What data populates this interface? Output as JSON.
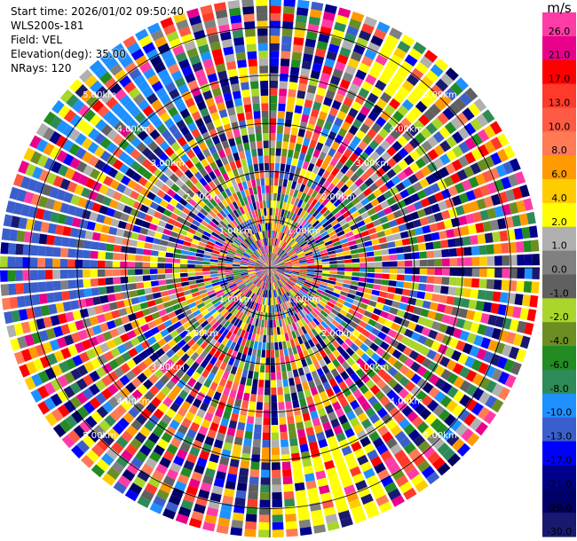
{
  "header": {
    "start_time": "Start time: 2026/01/02 09:50:40",
    "instrument": "WLS200s-181",
    "field": "Field: VEL",
    "elevation": "Elevation(deg): 35.00",
    "nrays": "NRays: 120"
  },
  "colorbar": {
    "unit": "m/s",
    "bins": [
      {
        "label": "26.0",
        "color": "#ff3ba6"
      },
      {
        "label": "21.0",
        "color": "#e8008b"
      },
      {
        "label": "17.0",
        "color": "#ff0000"
      },
      {
        "label": "13.0",
        "color": "#ff3a2a"
      },
      {
        "label": "10.0",
        "color": "#ff5a44"
      },
      {
        "label": "8.0",
        "color": "#ff7a55"
      },
      {
        "label": "6.0",
        "color": "#ff9a00"
      },
      {
        "label": "4.0",
        "color": "#ffcc00"
      },
      {
        "label": "2.0",
        "color": "#ffff00"
      },
      {
        "label": "1.0",
        "color": "#b0b0b0"
      },
      {
        "label": "0.0",
        "color": "#808080"
      },
      {
        "label": "-1.0",
        "color": "#606060"
      },
      {
        "label": "-2.0",
        "color": "#a8d62a"
      },
      {
        "label": "-4.0",
        "color": "#6b8e23"
      },
      {
        "label": "-6.0",
        "color": "#228b22"
      },
      {
        "label": "-8.0",
        "color": "#2e8b57"
      },
      {
        "label": "-10.0",
        "color": "#1e90ff"
      },
      {
        "label": "-13.0",
        "color": "#3a5fcd"
      },
      {
        "label": "-17.0",
        "color": "#0000ff"
      },
      {
        "label": "-21.0",
        "color": "#00008b"
      },
      {
        "label": "-26.0",
        "color": "#000066"
      },
      {
        "label": "-30.0",
        "color": "#191970"
      }
    ]
  },
  "chart_data": {
    "type": "heatmap",
    "projection": "polar (PPI)",
    "field": "VEL",
    "elevation_deg": 35.0,
    "nrays": 120,
    "value_range": [
      -30.0,
      30.0
    ],
    "range_rings_km": [
      1,
      2,
      3,
      4,
      5
    ],
    "range_ring_labels": [
      "1.00km",
      "2.00km",
      "3.00km",
      "4.00km",
      "5.00km"
    ],
    "colorbar_ticks": [
      26.0,
      21.0,
      17.0,
      13.0,
      10.0,
      8.0,
      6.0,
      4.0,
      2.0,
      1.0,
      0.0,
      -1.0,
      -2.0,
      -4.0,
      -6.0,
      -8.0,
      -10.0,
      -13.0,
      -17.0,
      -21.0,
      -26.0,
      -30.0
    ],
    "colorbar_unit": "m/s"
  }
}
